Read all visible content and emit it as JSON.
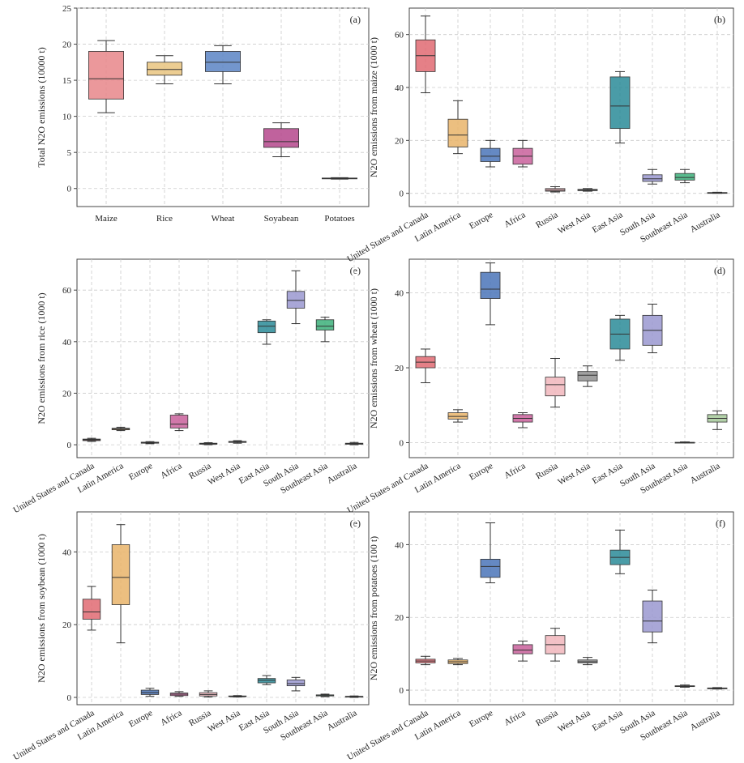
{
  "chart_data": [
    {
      "type": "box",
      "label": "(a)",
      "y_label": "Total N2O emissions (10000 t)",
      "categories": [
        "Maize",
        "Rice",
        "Wheat",
        "Soyabean",
        "Potatoes"
      ],
      "colors": [
        "#e8868a",
        "#e9c47f",
        "#5b84c4",
        "#b5478c",
        "#c8c8c8"
      ],
      "boxes": [
        {
          "min": 10.5,
          "q1": 12.4,
          "median": 15.2,
          "q3": 19,
          "max": 20.5
        },
        {
          "min": 14.5,
          "q1": 15.7,
          "median": 16.5,
          "q3": 17.5,
          "max": 18.4
        },
        {
          "min": 14.5,
          "q1": 16.2,
          "median": 17.5,
          "q3": 19,
          "max": 19.8
        },
        {
          "min": 4.4,
          "q1": 5.7,
          "median": 6.5,
          "q3": 8.3,
          "max": 9.1
        },
        {
          "min": 1.3,
          "q1": 1.35,
          "median": 1.4,
          "q3": 1.45,
          "max": 1.5
        }
      ],
      "ylim": [
        -2.5,
        25
      ],
      "yticks": [
        0,
        5,
        10,
        15,
        20,
        25
      ],
      "grid": true
    },
    {
      "type": "box",
      "label": "(b)",
      "y_label": "N2O emissions from maize (1000 t)",
      "categories": [
        "United States and Canada",
        "Latin America",
        "Europe",
        "Africa",
        "Russia",
        "West Asia",
        "East Asia",
        "South Asia",
        "Southeast Asia",
        "Australia"
      ],
      "colors": [
        "#e06a72",
        "#e9b46a",
        "#4a74b8",
        "#c9609b",
        "#f1b6bc",
        "#909090",
        "#2a8b98",
        "#9a98d0",
        "#3cb07a",
        "#a6c99a"
      ],
      "boxes": [
        {
          "min": 38,
          "q1": 46,
          "median": 52,
          "q3": 58,
          "max": 67
        },
        {
          "min": 15,
          "q1": 17.5,
          "median": 22,
          "q3": 28,
          "max": 35
        },
        {
          "min": 10,
          "q1": 12,
          "median": 14,
          "q3": 17,
          "max": 20
        },
        {
          "min": 10,
          "q1": 11,
          "median": 14,
          "q3": 17,
          "max": 20
        },
        {
          "min": 0.5,
          "q1": 0.8,
          "median": 1.2,
          "q3": 1.8,
          "max": 2.5
        },
        {
          "min": 0.8,
          "q1": 1,
          "median": 1.2,
          "q3": 1.5,
          "max": 1.8
        },
        {
          "min": 19,
          "q1": 24.5,
          "median": 33,
          "q3": 44,
          "max": 46
        },
        {
          "min": 3.5,
          "q1": 4.5,
          "median": 5.5,
          "q3": 7,
          "max": 9
        },
        {
          "min": 4,
          "q1": 5,
          "median": 6,
          "q3": 7.5,
          "max": 9
        },
        {
          "min": 0,
          "q1": 0.1,
          "median": 0.2,
          "q3": 0.3,
          "max": 0.4
        }
      ],
      "ylim": [
        -5,
        70
      ],
      "yticks": [
        0,
        20,
        40,
        60
      ],
      "grid": true
    },
    {
      "type": "box",
      "label": "(e)",
      "y_label": "N2O emissions from rice (1000 t)",
      "categories": [
        "United States and Canada",
        "Latin America",
        "Europe",
        "Africa",
        "Russia",
        "West Asia",
        "East Asia",
        "South Asia",
        "Southeast Asia",
        "Australia"
      ],
      "colors": [
        "#e06a72",
        "#e9b46a",
        "#4a74b8",
        "#c9609b",
        "#f1b6bc",
        "#909090",
        "#2a8b98",
        "#9a98d0",
        "#3cb07a",
        "#a6c99a"
      ],
      "boxes": [
        {
          "min": 1.3,
          "q1": 1.6,
          "median": 1.9,
          "q3": 2.2,
          "max": 2.5
        },
        {
          "min": 5.5,
          "q1": 5.8,
          "median": 6.1,
          "q3": 6.4,
          "max": 6.8
        },
        {
          "min": 0.4,
          "q1": 0.6,
          "median": 0.8,
          "q3": 1,
          "max": 1.2
        },
        {
          "min": 5.5,
          "q1": 6.5,
          "median": 8,
          "q3": 11.5,
          "max": 12
        },
        {
          "min": 0,
          "q1": 0.2,
          "median": 0.4,
          "q3": 0.6,
          "max": 0.8
        },
        {
          "min": 0.6,
          "q1": 0.9,
          "median": 1.1,
          "q3": 1.3,
          "max": 1.6
        },
        {
          "min": 39,
          "q1": 43.5,
          "median": 46,
          "q3": 48,
          "max": 48.5
        },
        {
          "min": 47,
          "q1": 53,
          "median": 56,
          "q3": 59.5,
          "max": 67.5
        },
        {
          "min": 40,
          "q1": 44.5,
          "median": 46,
          "q3": 48.5,
          "max": 49.5
        },
        {
          "min": 0,
          "q1": 0.2,
          "median": 0.4,
          "q3": 0.6,
          "max": 0.9
        }
      ],
      "ylim": [
        -5,
        72
      ],
      "yticks": [
        0,
        20,
        40,
        60
      ],
      "grid": true
    },
    {
      "type": "box",
      "label": "(d)",
      "y_label": "N2O emissions from wheat (1000 t)",
      "categories": [
        "United States and Canada",
        "Latin America",
        "Europe",
        "Africa",
        "Russia",
        "West Asia",
        "East Asia",
        "South Asia",
        "Southeast Asia",
        "Australia"
      ],
      "colors": [
        "#e06a72",
        "#e9b46a",
        "#4a74b8",
        "#c9609b",
        "#f1b6bc",
        "#909090",
        "#2a8b98",
        "#9a98d0",
        "#3cb07a",
        "#a6c99a"
      ],
      "boxes": [
        {
          "min": 16,
          "q1": 20,
          "median": 21.5,
          "q3": 23,
          "max": 25
        },
        {
          "min": 5.5,
          "q1": 6.3,
          "median": 7,
          "q3": 8,
          "max": 8.8
        },
        {
          "min": 31.5,
          "q1": 38.5,
          "median": 41,
          "q3": 45.5,
          "max": 48
        },
        {
          "min": 4,
          "q1": 5.5,
          "median": 6.5,
          "q3": 7.5,
          "max": 8
        },
        {
          "min": 9.5,
          "q1": 12.5,
          "median": 15.5,
          "q3": 17.5,
          "max": 22.5
        },
        {
          "min": 15,
          "q1": 16.5,
          "median": 18,
          "q3": 19,
          "max": 20.5
        },
        {
          "min": 22,
          "q1": 25,
          "median": 29,
          "q3": 33,
          "max": 34
        },
        {
          "min": 24,
          "q1": 26,
          "median": 30,
          "q3": 34,
          "max": 37
        },
        {
          "min": 0,
          "q1": 0,
          "median": 0,
          "q3": 0.1,
          "max": 0.2
        },
        {
          "min": 3.5,
          "q1": 5.5,
          "median": 6.5,
          "q3": 7.5,
          "max": 8.5
        }
      ],
      "ylim": [
        -4,
        49
      ],
      "yticks": [
        0,
        20,
        40
      ],
      "grid": true
    },
    {
      "type": "box",
      "label": "(e)",
      "y_label": "N2O emissions from soybean (1000 t)",
      "categories": [
        "United States and Canada",
        "Latin America",
        "Europe",
        "Africa",
        "Russia",
        "West Asia",
        "East Asia",
        "South Asia",
        "Southeast Asia",
        "Australia"
      ],
      "colors": [
        "#e06a72",
        "#e9b46a",
        "#4a74b8",
        "#c9609b",
        "#f1b6bc",
        "#909090",
        "#2a8b98",
        "#9a98d0",
        "#3cb07a",
        "#a6c99a"
      ],
      "boxes": [
        {
          "min": 18.5,
          "q1": 21.5,
          "median": 23.5,
          "q3": 27,
          "max": 30.5
        },
        {
          "min": 15,
          "q1": 25.5,
          "median": 33,
          "q3": 42,
          "max": 47.5
        },
        {
          "min": 0.3,
          "q1": 0.8,
          "median": 1.3,
          "q3": 2,
          "max": 2.5
        },
        {
          "min": 0.3,
          "q1": 0.5,
          "median": 0.9,
          "q3": 1.2,
          "max": 1.6
        },
        {
          "min": 0.1,
          "q1": 0.4,
          "median": 0.8,
          "q3": 1.3,
          "max": 1.8
        },
        {
          "min": 0.1,
          "q1": 0.2,
          "median": 0.3,
          "q3": 0.4,
          "max": 0.5
        },
        {
          "min": 3.5,
          "q1": 4,
          "median": 4.7,
          "q3": 5.2,
          "max": 6
        },
        {
          "min": 1.8,
          "q1": 3.2,
          "median": 3.8,
          "q3": 4.8,
          "max": 5.5
        },
        {
          "min": 0.2,
          "q1": 0.4,
          "median": 0.6,
          "q3": 0.7,
          "max": 0.9
        },
        {
          "min": 0,
          "q1": 0.1,
          "median": 0.2,
          "q3": 0.3,
          "max": 0.4
        }
      ],
      "ylim": [
        -2,
        51
      ],
      "yticks": [
        0,
        20,
        40
      ],
      "grid": true
    },
    {
      "type": "box",
      "label": "(f)",
      "y_label": "N2O emissions from potatoes (100 t)",
      "categories": [
        "United States and Canada",
        "Latin America",
        "Europe",
        "Africa",
        "Russia",
        "West Asia",
        "East Asia",
        "South Asia",
        "Southeast Asia",
        "Australia"
      ],
      "colors": [
        "#e06a72",
        "#e9b46a",
        "#4a74b8",
        "#c9609b",
        "#f1b6bc",
        "#909090",
        "#2a8b98",
        "#9a98d0",
        "#3cb07a",
        "#a6c99a"
      ],
      "boxes": [
        {
          "min": 7,
          "q1": 7.5,
          "median": 8,
          "q3": 8.5,
          "max": 9.3
        },
        {
          "min": 7,
          "q1": 7.3,
          "median": 7.8,
          "q3": 8.3,
          "max": 8.7
        },
        {
          "min": 29.5,
          "q1": 31,
          "median": 34,
          "q3": 36,
          "max": 46
        },
        {
          "min": 8,
          "q1": 10,
          "median": 11,
          "q3": 12.5,
          "max": 13.5
        },
        {
          "min": 8,
          "q1": 10,
          "median": 12.5,
          "q3": 15,
          "max": 17
        },
        {
          "min": 7,
          "q1": 7.5,
          "median": 7.8,
          "q3": 8.3,
          "max": 9
        },
        {
          "min": 32,
          "q1": 34.5,
          "median": 36.5,
          "q3": 38.5,
          "max": 44
        },
        {
          "min": 13,
          "q1": 16,
          "median": 19,
          "q3": 24.5,
          "max": 27.5
        },
        {
          "min": 0.8,
          "q1": 1,
          "median": 1.1,
          "q3": 1.2,
          "max": 1.4
        },
        {
          "min": 0.3,
          "q1": 0.4,
          "median": 0.5,
          "q3": 0.6,
          "max": 0.7
        }
      ],
      "ylim": [
        -4,
        49
      ],
      "yticks": [
        0,
        20,
        40
      ],
      "grid": true
    }
  ]
}
